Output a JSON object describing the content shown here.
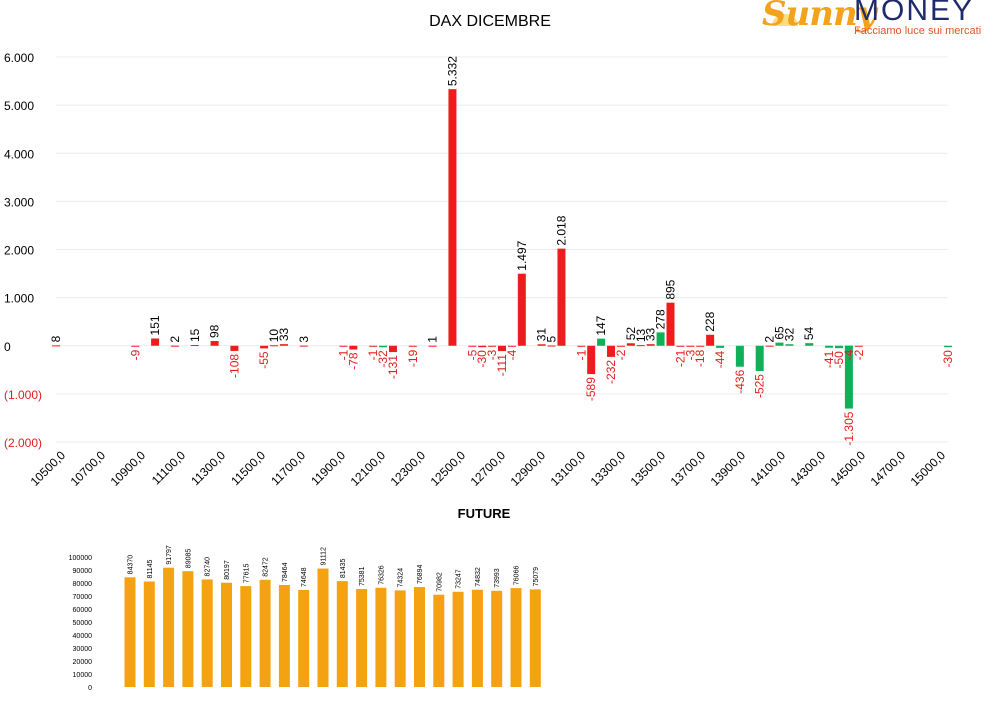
{
  "logo": {
    "word_left": "Sunny",
    "word_right": "MONEY",
    "tagline": "Facciamo luce sui mercati"
  },
  "colors": {
    "call": "#ee1c1c",
    "put": "#10b058",
    "future": "#f5a212",
    "negative_label": "#e01e1e",
    "axis_text": "#000000"
  },
  "chart_data": [
    {
      "type": "bar",
      "title": "DAX DICEMBRE",
      "xlabel": "",
      "ylabel": "",
      "ylim": [
        -2000,
        6000
      ],
      "y_ticks": [
        {
          "value": 6000,
          "label": "6.000"
        },
        {
          "value": 5000,
          "label": "5.000"
        },
        {
          "value": 4000,
          "label": "4.000"
        },
        {
          "value": 3000,
          "label": "3.000"
        },
        {
          "value": 2000,
          "label": "2.000"
        },
        {
          "value": 1000,
          "label": "1.000"
        },
        {
          "value": 0,
          "label": "0"
        },
        {
          "value": -1000,
          "label": "(1.000)"
        },
        {
          "value": -2000,
          "label": "(2.000)"
        }
      ],
      "x_tick_labels": [
        "10500,0",
        "10700,0",
        "10900,0",
        "11100,0",
        "11300,0",
        "11500,0",
        "11700,0",
        "11900,0",
        "12100,0",
        "12300,0",
        "12500,0",
        "12700,0",
        "12900,0",
        "13100,0",
        "13300,0",
        "13500,0",
        "13700,0",
        "13900,0",
        "14100,0",
        "14300,0",
        "14500,0",
        "14700,0",
        "15000,0"
      ],
      "grid": true,
      "legend": "none",
      "series": [
        {
          "color_key": "call",
          "points": [
            {
              "strike": 10500,
              "value": 8,
              "label": "8"
            },
            {
              "strike": 10900,
              "value": -9,
              "label": "-9"
            },
            {
              "strike": 11000,
              "value": 151,
              "label": "151"
            },
            {
              "strike": 11100,
              "value": 2,
              "label": "2"
            },
            {
              "strike": 11200,
              "value": 15,
              "label": "15"
            },
            {
              "strike": 11300,
              "value": 98,
              "label": "98"
            },
            {
              "strike": 11400,
              "value": -108,
              "label": "-108"
            },
            {
              "strike": 11550,
              "value": -55,
              "label": "-55"
            },
            {
              "strike": 11600,
              "value": 10,
              "label": "10"
            },
            {
              "strike": 11650,
              "value": 33,
              "label": "33"
            },
            {
              "strike": 11750,
              "value": 3,
              "label": "3"
            },
            {
              "strike": 11950,
              "value": -1,
              "label": "-1"
            },
            {
              "strike": 12000,
              "value": -78,
              "label": "-78"
            },
            {
              "strike": 12100,
              "value": -1,
              "label": "-1"
            },
            {
              "strike": 12200,
              "value": -131,
              "label": "-131"
            },
            {
              "strike": 12300,
              "value": -19,
              "label": "-19"
            },
            {
              "strike": 12400,
              "value": 1,
              "label": "1"
            },
            {
              "strike": 12500,
              "value": 5332,
              "label": "5.332"
            },
            {
              "strike": 12600,
              "value": -5,
              "label": "-5"
            },
            {
              "strike": 12650,
              "value": -30,
              "label": "-30"
            },
            {
              "strike": 12700,
              "value": -3,
              "label": "-3"
            },
            {
              "strike": 12750,
              "value": -111,
              "label": "-111"
            },
            {
              "strike": 12800,
              "value": -4,
              "label": "-4"
            },
            {
              "strike": 12850,
              "value": 1497,
              "label": "1.497"
            },
            {
              "strike": 12950,
              "value": 31,
              "label": "31"
            },
            {
              "strike": 13000,
              "value": 5,
              "label": "5"
            },
            {
              "strike": 13050,
              "value": 2018,
              "label": "2.018"
            },
            {
              "strike": 13150,
              "value": -1,
              "label": "-1"
            },
            {
              "strike": 13200,
              "value": -589,
              "label": "-589"
            },
            {
              "strike": 13300,
              "value": -232,
              "label": "-232"
            },
            {
              "strike": 13350,
              "value": -2,
              "label": "-2"
            },
            {
              "strike": 13400,
              "value": 52,
              "label": "52"
            },
            {
              "strike": 13450,
              "value": 13,
              "label": "13"
            },
            {
              "strike": 13500,
              "value": 33,
              "label": "33"
            },
            {
              "strike": 13600,
              "value": 895,
              "label": "895"
            },
            {
              "strike": 13650,
              "value": -21,
              "label": "-21"
            },
            {
              "strike": 13700,
              "value": -3,
              "label": "-3"
            },
            {
              "strike": 13750,
              "value": -18,
              "label": "-18"
            },
            {
              "strike": 13800,
              "value": 228,
              "label": "228"
            },
            {
              "strike": 14100,
              "value": 2,
              "label": "2"
            },
            {
              "strike": 14500,
              "value": -4,
              "label": "-4"
            },
            {
              "strike": 14550,
              "value": -2,
              "label": "-2"
            }
          ]
        },
        {
          "color_key": "put",
          "points": [
            {
              "strike": 12150,
              "value": -32,
              "label": "-32"
            },
            {
              "strike": 13250,
              "value": 147,
              "label": "147"
            },
            {
              "strike": 13550,
              "value": 278,
              "label": "278"
            },
            {
              "strike": 13850,
              "value": -44,
              "label": "-44"
            },
            {
              "strike": 13950,
              "value": -436,
              "label": "-436"
            },
            {
              "strike": 14050,
              "value": -525,
              "label": "-525"
            },
            {
              "strike": 14150,
              "value": 65,
              "label": "65"
            },
            {
              "strike": 14200,
              "value": 32,
              "label": "32"
            },
            {
              "strike": 14300,
              "value": 54,
              "label": "54"
            },
            {
              "strike": 14400,
              "value": -41,
              "label": "-41"
            },
            {
              "strike": 14450,
              "value": -50,
              "label": "-50"
            },
            {
              "strike": 14500,
              "value": -1305,
              "label": "-1.305"
            },
            {
              "strike": 15000,
              "value": -30,
              "label": "-30"
            }
          ]
        }
      ]
    },
    {
      "type": "bar",
      "title": "FUTURE",
      "xlabel": "",
      "ylabel": "",
      "ylim": [
        0,
        100000
      ],
      "y_ticks": [
        0,
        10000,
        20000,
        30000,
        40000,
        50000,
        60000,
        70000,
        80000,
        90000,
        100000
      ],
      "grid": false,
      "legend": "none",
      "values": [
        84370,
        81145,
        91797,
        89085,
        82740,
        80197,
        77615,
        82472,
        78464,
        74648,
        91112,
        81435,
        75381,
        76326,
        74324,
        76894,
        70982,
        73247,
        74832,
        73993,
        76066,
        75079
      ]
    }
  ]
}
